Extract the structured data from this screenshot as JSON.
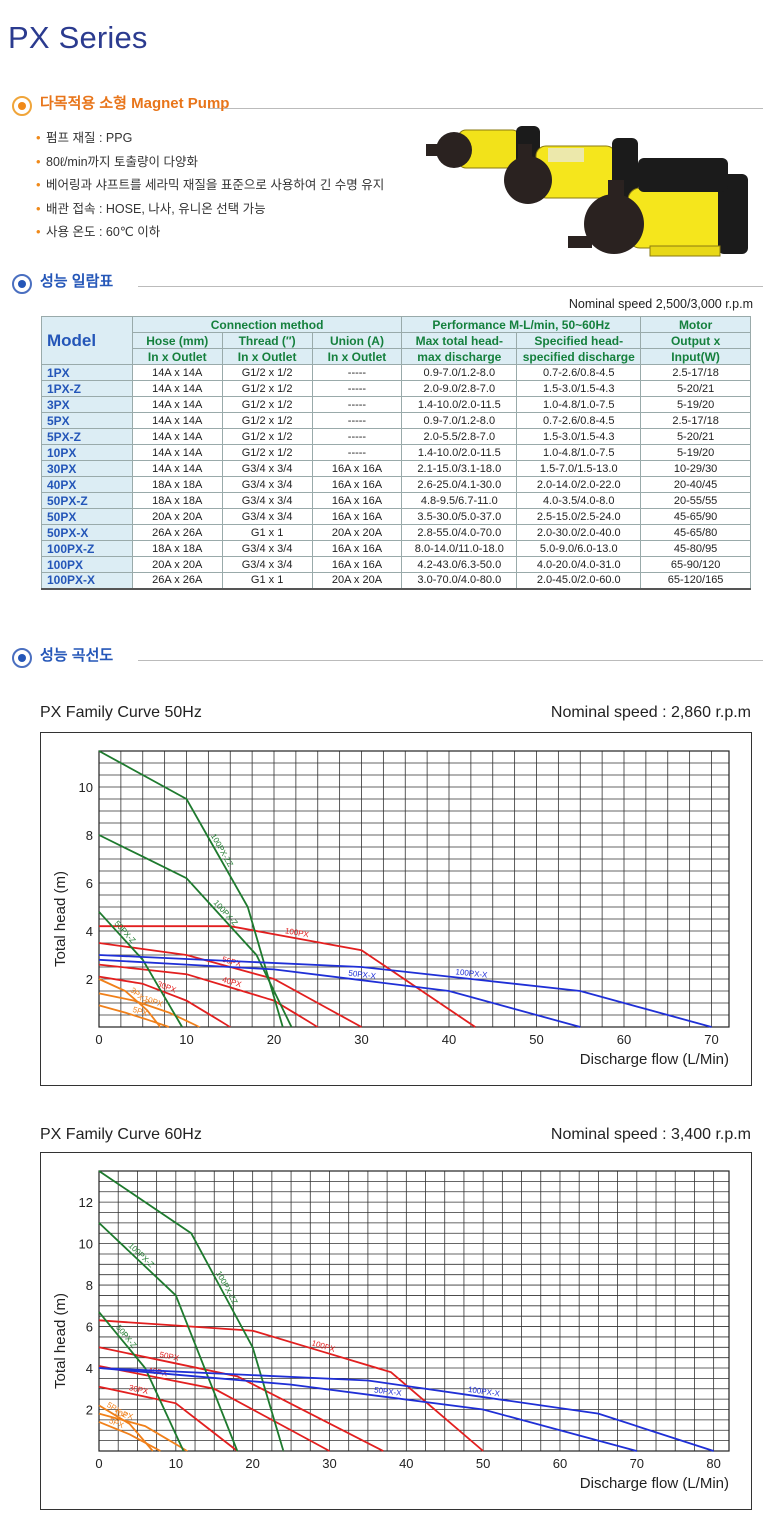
{
  "page_title": "PX Series",
  "intro": {
    "heading": "다목적용 소형 Magnet Pump",
    "bullets": [
      "펌프 재질 :  PPG",
      "80ℓ/min까지 토출량이 다양화",
      "베어링과 샤프트를 세라믹 재질을 표준으로 사용하여 긴 수명 유지",
      "배관 접속 : HOSE, 나사, 유니온 선택 가능",
      "사용 온도 : 60℃ 이하"
    ]
  },
  "performance_table": {
    "heading": "성능 일람표",
    "speed_note": "Nominal speed 2,500/3,000 r.p.m",
    "headers": {
      "model": "Model",
      "connection": "Connection method",
      "performance": "Performance M-L/min, 50~60Hz",
      "motor": "Motor",
      "hose_1": "Hose (mm)",
      "hose_2": "In x Outlet",
      "thread_1": "Thread (″)",
      "thread_2": "In x Outlet",
      "union_1": "Union (A)",
      "union_2": "In x Outlet",
      "maxhead_1": "Max total head-",
      "maxhead_2": "max discharge",
      "spec_1": "Specified head-",
      "spec_2": "specified discharge",
      "output_1": "Output x",
      "output_2": "Input(W)"
    },
    "rows": [
      [
        "1PX",
        "14A x 14A",
        "G1/2 x 1/2",
        "-----",
        "0.9-7.0/1.2-8.0",
        "0.7-2.6/0.8-4.5",
        "2.5-17/18"
      ],
      [
        "1PX-Z",
        "14A x 14A",
        "G1/2 x 1/2",
        "-----",
        "2.0-9.0/2.8-7.0",
        "1.5-3.0/1.5-4.3",
        "5-20/21"
      ],
      [
        "3PX",
        "14A x 14A",
        "G1/2 x 1/2",
        "-----",
        "1.4-10.0/2.0-11.5",
        "1.0-4.8/1.0-7.5",
        "5-19/20"
      ],
      [
        "5PX",
        "14A x 14A",
        "G1/2 x 1/2",
        "-----",
        "0.9-7.0/1.2-8.0",
        "0.7-2.6/0.8-4.5",
        "2.5-17/18"
      ],
      [
        "5PX-Z",
        "14A x 14A",
        "G1/2 x 1/2",
        "-----",
        "2.0-5.5/2.8-7.0",
        "1.5-3.0/1.5-4.3",
        "5-20/21"
      ],
      [
        "10PX",
        "14A x 14A",
        "G1/2 x 1/2",
        "-----",
        "1.4-10.0/2.0-11.5",
        "1.0-4.8/1.0-7.5",
        "5-19/20"
      ],
      [
        "30PX",
        "14A x 14A",
        "G3/4 x 3/4",
        "16A x 16A",
        "2.1-15.0/3.1-18.0",
        "1.5-7.0/1.5-13.0",
        "10-29/30"
      ],
      [
        "40PX",
        "18A x 18A",
        "G3/4 x 3/4",
        "16A x 16A",
        "2.6-25.0/4.1-30.0",
        "2.0-14.0/2.0-22.0",
        "20-40/45"
      ],
      [
        "50PX-Z",
        "18A x 18A",
        "G3/4 x 3/4",
        "16A x 16A",
        "4.8-9.5/6.7-11.0",
        "4.0-3.5/4.0-8.0",
        "20-55/55"
      ],
      [
        "50PX",
        "20A x 20A",
        "G3/4 x 3/4",
        "16A x 16A",
        "3.5-30.0/5.0-37.0",
        "2.5-15.0/2.5-24.0",
        "45-65/90"
      ],
      [
        "50PX-X",
        "26A x 26A",
        "G1 x 1",
        "20A x 20A",
        "2.8-55.0/4.0-70.0",
        "2.0-30.0/2.0-40.0",
        "45-65/80"
      ],
      [
        "100PX-Z",
        "18A x 18A",
        "G3/4 x 3/4",
        "16A x 16A",
        "8.0-14.0/11.0-18.0",
        "5.0-9.0/6.0-13.0",
        "45-80/95"
      ],
      [
        "100PX",
        "20A x 20A",
        "G3/4 x 3/4",
        "16A x 16A",
        "4.2-43.0/6.3-50.0",
        "4.0-20.0/4.0-31.0",
        "65-90/120"
      ],
      [
        "100PX-X",
        "26A x 26A",
        "G1 x 1",
        "20A x 20A",
        "3.0-70.0/4.0-80.0",
        "2.0-45.0/2.0-60.0",
        "65-120/165"
      ]
    ]
  },
  "curves_section": {
    "heading": "성능 곡선도"
  },
  "colors": {
    "orange": "#f0801a",
    "red": "#e21f1f",
    "green": "#1e7a2e",
    "blue": "#1f2fd6",
    "title_blue": "#2b3b8f"
  },
  "chart_data": [
    {
      "type": "line",
      "title": "PX Family Curve 50Hz",
      "subtitle": "Nominal speed : 2,860 r.p.m",
      "xlabel": "Discharge flow (L/Min)",
      "ylabel": "Total head (m)",
      "xlim": [
        0,
        72
      ],
      "ylim": [
        0,
        11.5
      ],
      "xticks": [
        0,
        10,
        20,
        30,
        40,
        50,
        60,
        70
      ],
      "yticks": [
        2,
        4,
        6,
        8,
        10
      ],
      "grid": true,
      "series": [
        {
          "name": "5PX",
          "color": "orange",
          "x": [
            0,
            3,
            6,
            8
          ],
          "y": [
            0.9,
            0.6,
            0.25,
            0
          ]
        },
        {
          "name": "10PX",
          "color": "orange",
          "x": [
            0,
            4,
            8,
            11.5
          ],
          "y": [
            1.4,
            1.1,
            0.6,
            0
          ]
        },
        {
          "name": "3PX-Z",
          "color": "orange",
          "x": [
            0,
            3,
            5.5,
            7
          ],
          "y": [
            2.0,
            1.5,
            0.7,
            0
          ]
        },
        {
          "name": "30PX",
          "color": "red",
          "x": [
            0,
            5,
            10,
            15
          ],
          "y": [
            2.1,
            1.8,
            1.1,
            0
          ]
        },
        {
          "name": "40PX",
          "color": "red",
          "x": [
            0,
            10,
            20,
            25
          ],
          "y": [
            2.6,
            2.2,
            1.1,
            0
          ]
        },
        {
          "name": "50PX",
          "color": "red",
          "x": [
            0,
            10,
            20,
            30
          ],
          "y": [
            3.5,
            3.0,
            2.0,
            0
          ]
        },
        {
          "name": "100PX",
          "color": "red",
          "x": [
            0,
            15,
            30,
            43
          ],
          "y": [
            4.2,
            4.2,
            3.2,
            0
          ]
        },
        {
          "name": "50PX-Z",
          "color": "green",
          "x": [
            0,
            5,
            9.5
          ],
          "y": [
            4.8,
            2.8,
            0
          ]
        },
        {
          "name": "100PX-Z",
          "color": "green",
          "x": [
            0,
            10,
            18,
            22
          ],
          "y": [
            8.0,
            6.2,
            3.0,
            0
          ]
        },
        {
          "name": "100PX-ZZ",
          "color": "green",
          "x": [
            0,
            10,
            17,
            21
          ],
          "y": [
            11.5,
            9.5,
            5.0,
            0
          ]
        },
        {
          "name": "50PX-X",
          "color": "blue",
          "x": [
            0,
            20,
            40,
            55
          ],
          "y": [
            2.8,
            2.4,
            1.5,
            0
          ]
        },
        {
          "name": "100PX-X",
          "color": "blue",
          "x": [
            0,
            30,
            55,
            70
          ],
          "y": [
            3.0,
            2.5,
            1.5,
            0
          ]
        }
      ]
    },
    {
      "type": "line",
      "title": "PX Family Curve 60Hz",
      "subtitle": "Nominal speed : 3,400 r.p.m",
      "xlabel": "Discharge flow (L/Min)",
      "ylabel": "Total head (m)",
      "xlim": [
        0,
        82
      ],
      "ylim": [
        0,
        13.5
      ],
      "xticks": [
        0,
        10,
        20,
        30,
        40,
        50,
        60,
        70,
        80
      ],
      "yticks": [
        2,
        4,
        6,
        8,
        10,
        12
      ],
      "grid": true,
      "series": [
        {
          "name": "5PX",
          "color": "orange",
          "x": [
            0,
            4,
            8
          ],
          "y": [
            1.4,
            0.8,
            0
          ]
        },
        {
          "name": "5PX-Z",
          "color": "orange",
          "x": [
            0,
            4,
            7
          ],
          "y": [
            2.2,
            1.3,
            0
          ]
        },
        {
          "name": "10PX",
          "color": "orange",
          "x": [
            0,
            6,
            11.5
          ],
          "y": [
            1.8,
            1.2,
            0
          ]
        },
        {
          "name": "30PX",
          "color": "red",
          "x": [
            0,
            10,
            18
          ],
          "y": [
            3.1,
            2.3,
            0
          ]
        },
        {
          "name": "40PX",
          "color": "red",
          "x": [
            0,
            15,
            30
          ],
          "y": [
            4.1,
            3.0,
            0
          ]
        },
        {
          "name": "50PX",
          "color": "red",
          "x": [
            0,
            18,
            37
          ],
          "y": [
            5.0,
            3.6,
            0
          ]
        },
        {
          "name": "100PX",
          "color": "red",
          "x": [
            0,
            20,
            38,
            50
          ],
          "y": [
            6.3,
            5.8,
            3.8,
            0
          ]
        },
        {
          "name": "50PX-Z",
          "color": "green",
          "x": [
            0,
            6,
            11
          ],
          "y": [
            6.7,
            4.0,
            0
          ]
        },
        {
          "name": "100PX-Z",
          "color": "green",
          "x": [
            0,
            10,
            18
          ],
          "y": [
            11.0,
            7.5,
            0
          ]
        },
        {
          "name": "100PX-ZZ",
          "color": "green",
          "x": [
            0,
            12,
            20,
            24
          ],
          "y": [
            13.5,
            10.5,
            5.0,
            0
          ]
        },
        {
          "name": "50PX-X",
          "color": "blue",
          "x": [
            0,
            25,
            50,
            70
          ],
          "y": [
            4.0,
            3.2,
            2.0,
            0
          ]
        },
        {
          "name": "100PX-X",
          "color": "blue",
          "x": [
            0,
            35,
            65,
            80
          ],
          "y": [
            4.0,
            3.4,
            1.8,
            0
          ]
        }
      ]
    }
  ]
}
